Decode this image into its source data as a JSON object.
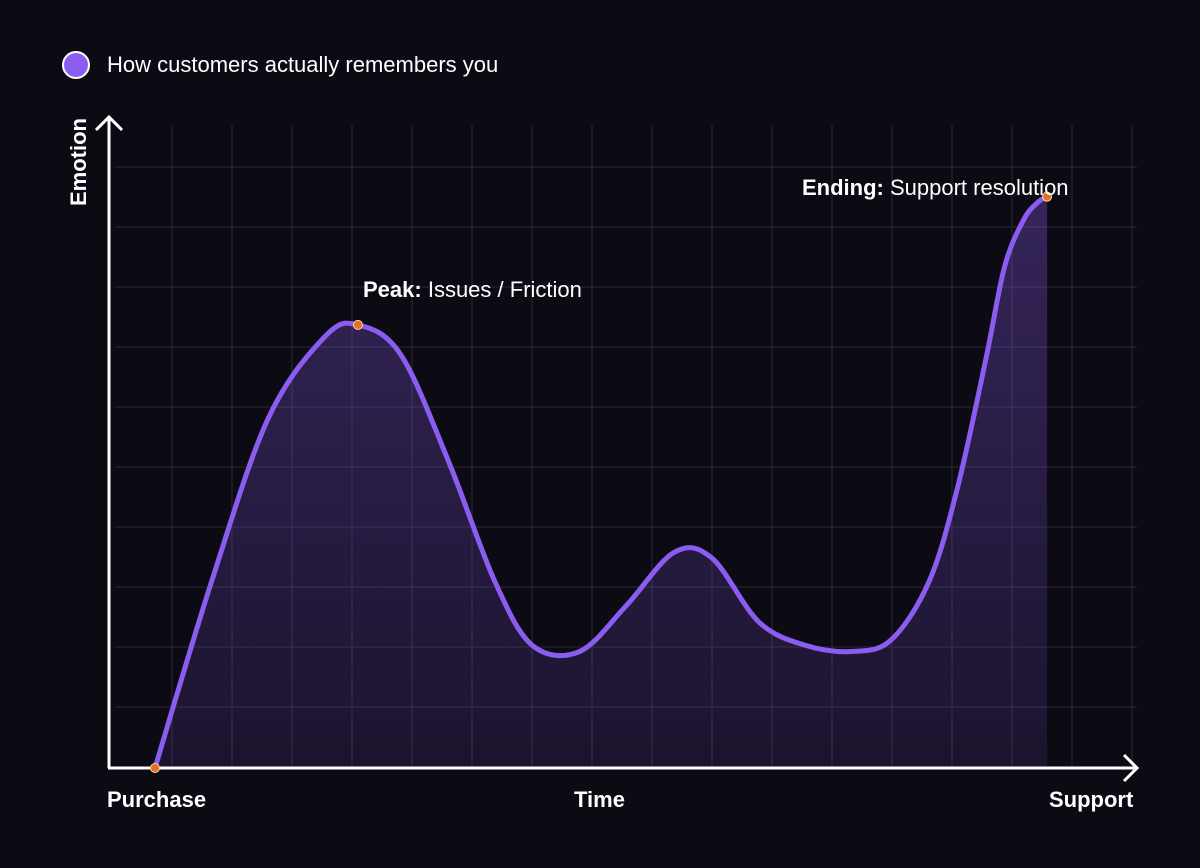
{
  "legend": {
    "label": "How customers actually remembers you",
    "color": "#8b5cf0"
  },
  "colors": {
    "background": "#0c0a13",
    "line": "#8b5cf0",
    "point": "#e0702a",
    "axis": "#ffffff",
    "grid": "#2a2833"
  },
  "chart_data": {
    "type": "area",
    "title": "",
    "xlabel": "Time",
    "ylabel": "Emotion",
    "x_tick_labels": {
      "start": "Purchase",
      "end": "Support"
    },
    "grid": true,
    "legend_position": "top-left",
    "xlim": [
      0,
      100
    ],
    "ylim": [
      0,
      10
    ],
    "series": [
      {
        "name": "How customers actually remembers you",
        "x": [
          0,
          6,
          12,
          18,
          21.5,
          26,
          31,
          36,
          40,
          45,
          50,
          55,
          59,
          64,
          69,
          74,
          78,
          82,
          85,
          88,
          90,
          92,
          93.5,
          94.5
        ],
        "y": [
          0,
          3.2,
          6.0,
          7.4,
          7.6,
          7.1,
          5.3,
          3.2,
          2.1,
          2.0,
          2.8,
          3.7,
          3.6,
          2.5,
          2.1,
          2.0,
          2.2,
          3.2,
          4.8,
          7.0,
          8.6,
          9.4,
          9.7,
          9.8
        ]
      }
    ],
    "annotations": [
      {
        "key": "peak",
        "bold": "Peak:",
        "text": " Issues / Friction",
        "x": 21.5,
        "y": 7.6
      },
      {
        "key": "ending",
        "bold": "Ending:",
        "text": " Support resolution",
        "x": 94.5,
        "y": 9.8
      },
      {
        "key": "start",
        "bold": "",
        "text": "",
        "x": 0,
        "y": 0
      }
    ]
  }
}
